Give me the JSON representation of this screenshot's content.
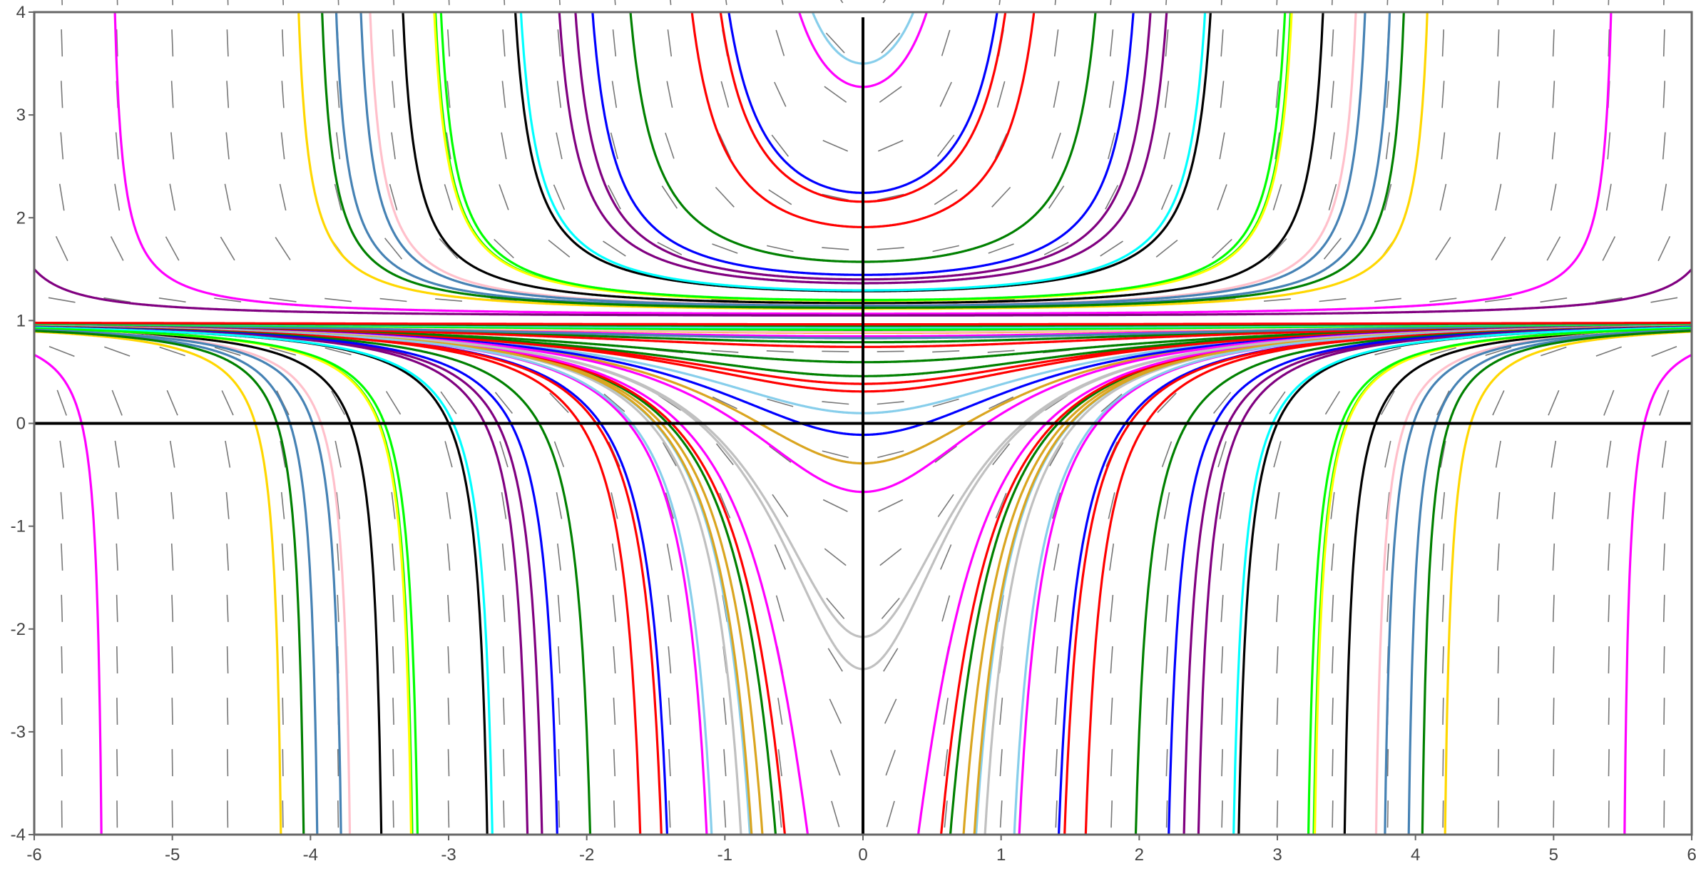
{
  "chart_data": {
    "type": "line",
    "title": "",
    "xlabel": "",
    "ylabel": "",
    "xlim": [
      -6,
      6
    ],
    "ylim": [
      -4,
      4
    ],
    "x_ticks": [
      "-6",
      "-5",
      "-4",
      "-3",
      "-2",
      "-1",
      "0",
      "1",
      "2",
      "3",
      "4",
      "5",
      "6"
    ],
    "y_ticks": [
      "-4",
      "-3",
      "-2",
      "-1",
      "0",
      "1",
      "2",
      "3",
      "4"
    ],
    "grid": false,
    "slope_field": "y' = x(y-1)^2",
    "series": [
      {
        "color": "#00ff00",
        "c": -10.25
      },
      {
        "color": "#4682b4",
        "c": -15.21
      },
      {
        "color": "#000000",
        "c": -11.76
      },
      {
        "color": "#800080",
        "c": -5.0
      },
      {
        "color": "#0000ff",
        "c": -1.61
      },
      {
        "color": "#008000",
        "c": 0.0
      },
      {
        "color": "#daa520",
        "c": -0.13
      },
      {
        "color": "#c0c0c0",
        "c": -0.38
      },
      {
        "color": "#ff00ff",
        "c": -0.88
      },
      {
        "color": "#ff0000",
        "c": -1.73
      },
      {
        "color": "#87ceeb",
        "c": -0.27
      },
      {
        "color": "#ffd700",
        "c": -17.36
      },
      {
        "color": "#ff0000",
        "c": 0.08
      },
      {
        "color": "#ff00ff",
        "c": 0.24
      },
      {
        "color": "#c0c0c0",
        "c": 0.59
      },
      {
        "color": "#daa520",
        "c": 1.44
      },
      {
        "color": "#87ceeb",
        "c": 2.22
      },
      {
        "color": "#ff0000",
        "c": 3.25
      },
      {
        "color": "#008000",
        "c": 4.94
      },
      {
        "color": "#0000ff",
        "c": 12.7
      },
      {
        "color": "#800080",
        "c": 21.0
      },
      {
        "color": "#000000",
        "c": 22.02
      },
      {
        "color": "#ff00ff",
        "c": 13.0
      },
      {
        "color": "#ffd700",
        "c": 17.2
      },
      {
        "color": "#008000",
        "c": 9.5
      },
      {
        "color": "#ff0000",
        "c": 7.8
      },
      {
        "color": "#ffa500",
        "c": 16.9
      },
      {
        "color": "#ffc0cb",
        "c": 17.8
      },
      {
        "color": "#4682b4",
        "c": 11.7
      },
      {
        "color": "#008000",
        "c": 3.7
      },
      {
        "color": "#ff0000",
        "c": 2.9
      },
      {
        "color": "#0000ff",
        "c": 1.8
      },
      {
        "color": "#ff00ff",
        "c": 1.2
      },
      {
        "color": "#c0c0c0",
        "c": 0.65
      },
      {
        "color": "#daa520",
        "c": -0.25
      },
      {
        "color": "#87ceeb",
        "c": -0.8
      },
      {
        "color": "#ff0000",
        "c": -2.2
      },
      {
        "color": "#008000",
        "c": -3.5
      },
      {
        "color": "#0000ff",
        "c": -4.5
      },
      {
        "color": "#800080",
        "c": -5.5
      },
      {
        "color": "#000000",
        "c": -7.0
      },
      {
        "color": "#ffff00",
        "c": -10.3
      },
      {
        "color": "#00ffff",
        "c": -6.8
      },
      {
        "color": "#ffc0cb",
        "c": -13.4
      },
      {
        "color": "#00ff00",
        "c": -10.0
      },
      {
        "color": "#4682b4",
        "c": -13.88
      },
      {
        "color": "#008000",
        "c": -16.0
      },
      {
        "color": "#00ffff",
        "c": 25.0
      },
      {
        "color": "#00ff00",
        "c": 22.5
      },
      {
        "color": "#40e0d0",
        "c": 30.0
      },
      {
        "color": "#008000",
        "c": 40.0
      },
      {
        "color": "#ff0000",
        "c": 55.0
      },
      {
        "color": "#ff00ff",
        "c": -30.0
      },
      {
        "color": "#800080",
        "c": -40.0
      }
    ]
  }
}
